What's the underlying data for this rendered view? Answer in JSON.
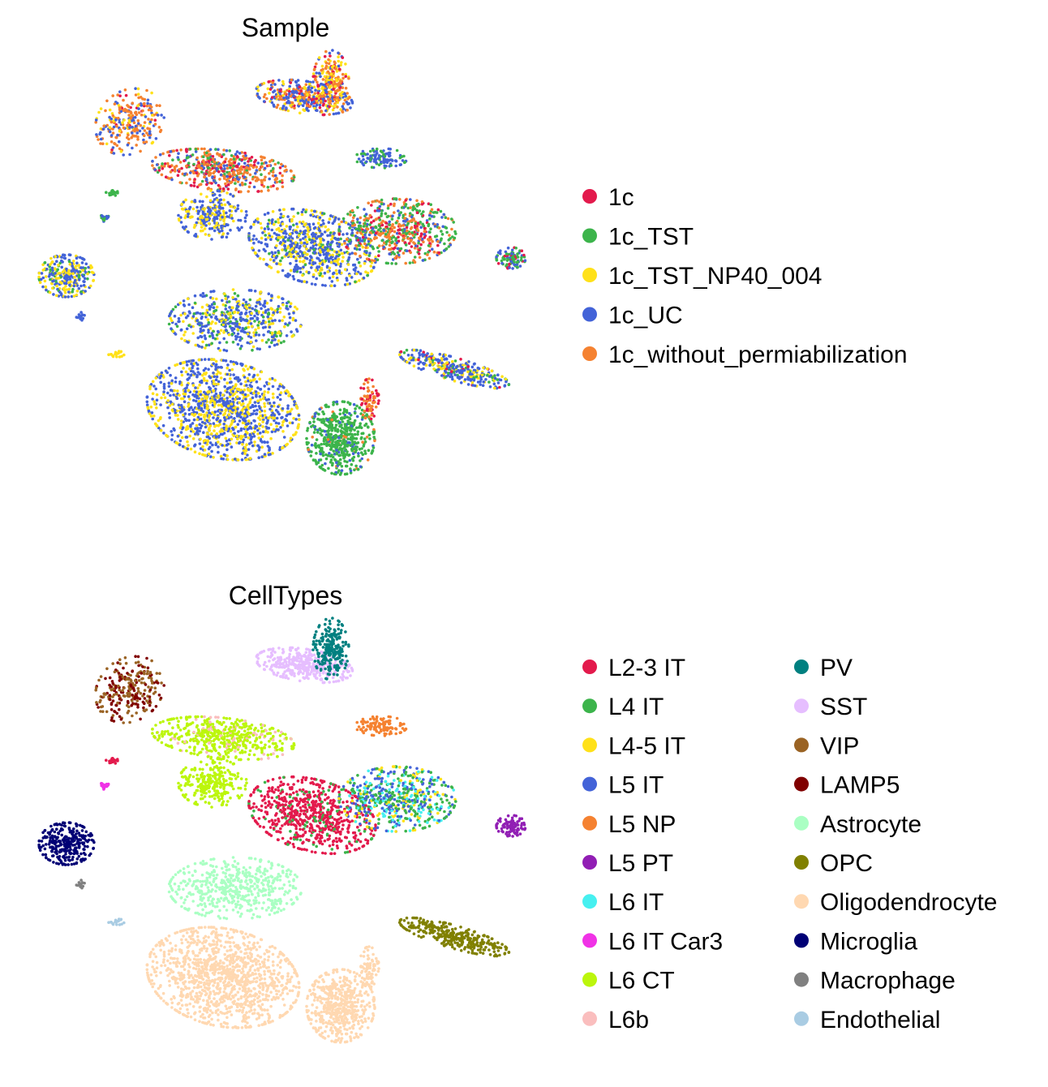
{
  "chart_data": [
    {
      "type": "scatter",
      "title": "Sample",
      "xlabel": "",
      "ylabel": "",
      "grid": false,
      "legend_placement": "right",
      "series": [
        {
          "name": "1c",
          "color": "#e31a4c"
        },
        {
          "name": "1c_TST",
          "color": "#3cb44b"
        },
        {
          "name": "1c_TST_NP40_004",
          "color": "#ffe119"
        },
        {
          "name": "1c_UC",
          "color": "#4363d8"
        },
        {
          "name": "1c_without_permiabilization",
          "color": "#f58231"
        }
      ]
    },
    {
      "type": "scatter",
      "title": "CellTypes",
      "xlabel": "",
      "ylabel": "",
      "grid": false,
      "legend_placement": "right",
      "series": [
        {
          "name": "L2-3 IT",
          "color": "#e31a4c"
        },
        {
          "name": "L4 IT",
          "color": "#3cb44b"
        },
        {
          "name": "L4-5 IT",
          "color": "#ffe119"
        },
        {
          "name": "L5 IT",
          "color": "#4363d8"
        },
        {
          "name": "L5 NP",
          "color": "#f58231"
        },
        {
          "name": "L5 PT",
          "color": "#911eb4"
        },
        {
          "name": "L6 IT",
          "color": "#46f0f0"
        },
        {
          "name": "L6 IT Car3",
          "color": "#f032e6"
        },
        {
          "name": "L6 CT",
          "color": "#bcf60c"
        },
        {
          "name": "L6b",
          "color": "#fabebe"
        },
        {
          "name": "PV",
          "color": "#008080"
        },
        {
          "name": "SST",
          "color": "#e6beff"
        },
        {
          "name": "VIP",
          "color": "#9a6324"
        },
        {
          "name": "LAMP5",
          "color": "#800000"
        },
        {
          "name": "Astrocyte",
          "color": "#aaffc3"
        },
        {
          "name": "OPC",
          "color": "#808000"
        },
        {
          "name": "Oligodendrocyte",
          "color": "#ffd8b1"
        },
        {
          "name": "Microglia",
          "color": "#000075"
        },
        {
          "name": "Macrophage",
          "color": "#808080"
        },
        {
          "name": "Endothelial",
          "color": "#a9cce3"
        }
      ]
    }
  ]
}
